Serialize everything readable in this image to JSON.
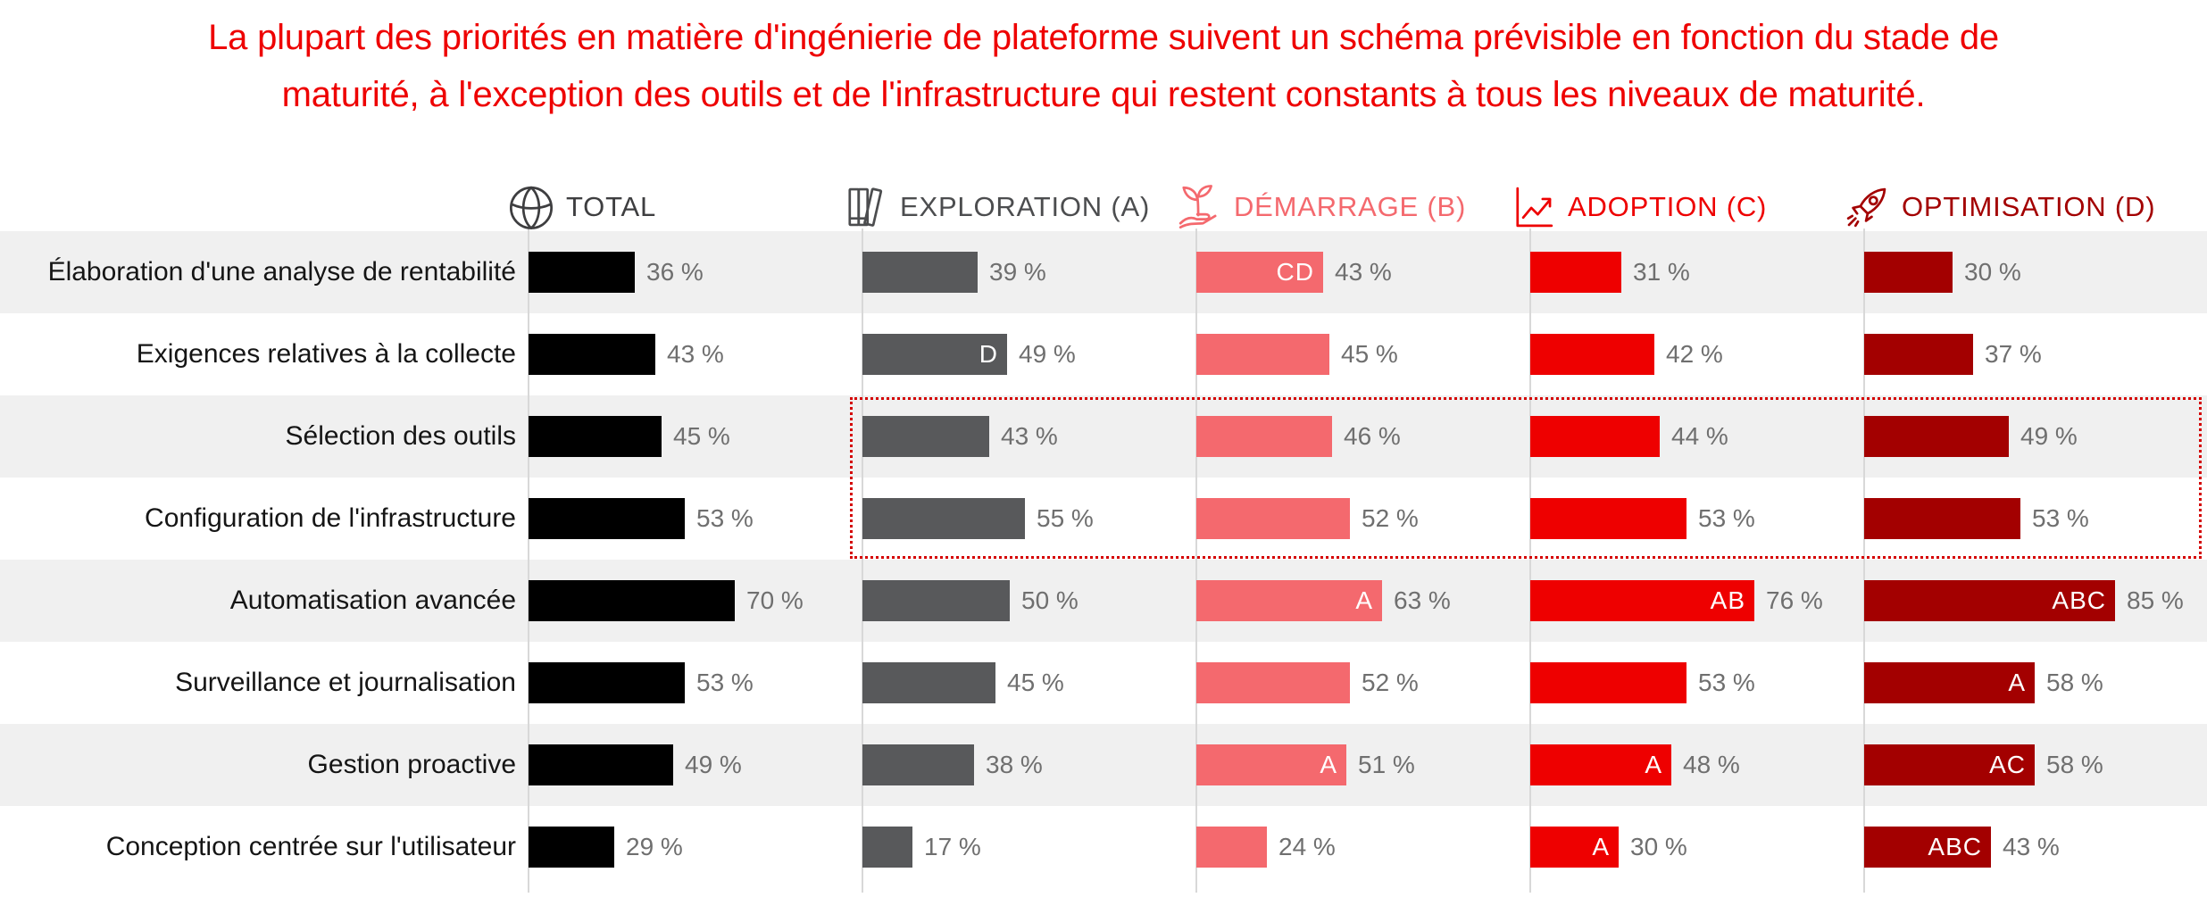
{
  "title": {
    "line1": "La plupart des priorités en matière d'ingénierie de plateforme suivent un schéma prévisible en fonction du stade de",
    "line2": "maturité, à l'exception des outils et de l'infrastructure qui restent constants à tous les niveaux de maturité."
  },
  "colors": {
    "title_text": "#ee0000",
    "stripe": "#f0f0f0",
    "row_alt": "#ffffff",
    "axis_line": "#d8d8d8",
    "value_text": "#6f6f6f",
    "category_text": "#151515",
    "highlight_border": "#d40000"
  },
  "chart_data": {
    "type": "bar",
    "orientation": "horizontal",
    "unit": "%",
    "value_suffix": " %",
    "xlim": [
      0,
      100
    ],
    "grid": false,
    "legend_position": "top",
    "categories": [
      "Élaboration d'une analyse de rentabilité",
      "Exigences relatives à la collecte",
      "Sélection des outils",
      "Configuration de l'infrastructure",
      "Automatisation avancée",
      "Surveillance et journalisation",
      "Gestion proactive",
      "Conception centrée sur l'utilisateur"
    ],
    "series": [
      {
        "key": "total",
        "label": "TOTAL",
        "icon": "globe-icon",
        "bar_color": "#000000",
        "header_color": "#3e3e40",
        "values": [
          36,
          43,
          45,
          53,
          70,
          53,
          49,
          29
        ],
        "significance": [
          "",
          "",
          "",
          "",
          "",
          "",
          "",
          ""
        ]
      },
      {
        "key": "exploration",
        "label": "EXPLORATION (A)",
        "icon": "books-icon",
        "bar_color": "#58595b",
        "header_color": "#4c4d4f",
        "values": [
          39,
          49,
          43,
          55,
          50,
          45,
          38,
          17
        ],
        "significance": [
          "",
          "D",
          "",
          "",
          "",
          "",
          "",
          ""
        ]
      },
      {
        "key": "demarrage",
        "label": "DÉMARRAGE (B)",
        "icon": "seedling-hand-icon",
        "bar_color": "#f4696e",
        "header_color": "#f4696e",
        "values": [
          43,
          45,
          46,
          52,
          63,
          52,
          51,
          24
        ],
        "significance": [
          "CD",
          "",
          "",
          "",
          "A",
          "",
          "A",
          ""
        ]
      },
      {
        "key": "adoption",
        "label": "ADOPTION (C)",
        "icon": "line-chart-icon",
        "bar_color": "#ee0000",
        "header_color": "#ee0000",
        "values": [
          31,
          42,
          44,
          53,
          76,
          53,
          48,
          30
        ],
        "significance": [
          "",
          "",
          "",
          "",
          "AB",
          "",
          "A",
          "A"
        ]
      },
      {
        "key": "optimisation",
        "label": "OPTIMISATION (D)",
        "icon": "rocket-icon",
        "bar_color": "#a30000",
        "header_color": "#a30000",
        "values": [
          30,
          37,
          49,
          53,
          85,
          58,
          58,
          43
        ],
        "significance": [
          "",
          "",
          "",
          "",
          "ABC",
          "A",
          "AC",
          "ABC"
        ]
      }
    ],
    "highlight": {
      "rows": [
        2,
        3
      ],
      "row_labels": [
        "Sélection des outils",
        "Configuration de l'infrastructure"
      ],
      "style": "dotted-red-outline"
    }
  }
}
